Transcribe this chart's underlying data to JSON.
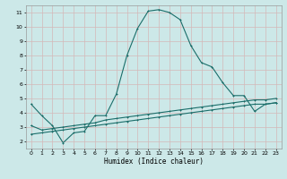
{
  "title": "",
  "xlabel": "Humidex (Indice chaleur)",
  "ylabel": "",
  "bg_color": "#cce8e8",
  "grid_color": "#b8d4d4",
  "line_color": "#1a6e6a",
  "xlim": [
    -0.5,
    23.5
  ],
  "ylim": [
    1.5,
    11.5
  ],
  "xticks": [
    0,
    1,
    2,
    3,
    4,
    5,
    6,
    7,
    8,
    9,
    10,
    11,
    12,
    13,
    14,
    15,
    16,
    17,
    18,
    19,
    20,
    21,
    22,
    23
  ],
  "yticks": [
    2,
    3,
    4,
    5,
    6,
    7,
    8,
    9,
    10,
    11
  ],
  "curve1_x": [
    0,
    1,
    2,
    3,
    4,
    5,
    6,
    7,
    8,
    9,
    10,
    11,
    12,
    13,
    14,
    15,
    16,
    17,
    18,
    19,
    20,
    21,
    22,
    23
  ],
  "curve1_y": [
    4.6,
    3.8,
    3.1,
    1.9,
    2.6,
    2.7,
    3.8,
    3.8,
    5.3,
    8.0,
    9.9,
    11.1,
    11.2,
    11.0,
    10.5,
    8.7,
    7.5,
    7.2,
    6.1,
    5.2,
    5.2,
    4.1,
    4.6,
    4.7
  ],
  "curve2_x": [
    0,
    1,
    2,
    3,
    4,
    5,
    6,
    7,
    8,
    9,
    10,
    11,
    12,
    13,
    14,
    15,
    16,
    17,
    18,
    19,
    20,
    21,
    22,
    23
  ],
  "curve2_y": [
    3.1,
    2.8,
    2.9,
    3.0,
    3.1,
    3.2,
    3.3,
    3.5,
    3.6,
    3.7,
    3.8,
    3.9,
    4.0,
    4.1,
    4.2,
    4.3,
    4.4,
    4.5,
    4.6,
    4.7,
    4.8,
    4.9,
    4.9,
    5.0
  ],
  "curve3_x": [
    0,
    1,
    2,
    3,
    4,
    5,
    6,
    7,
    8,
    9,
    10,
    11,
    12,
    13,
    14,
    15,
    16,
    17,
    18,
    19,
    20,
    21,
    22,
    23
  ],
  "curve3_y": [
    2.5,
    2.6,
    2.7,
    2.8,
    2.9,
    3.0,
    3.1,
    3.2,
    3.3,
    3.4,
    3.5,
    3.6,
    3.7,
    3.8,
    3.9,
    4.0,
    4.1,
    4.2,
    4.3,
    4.4,
    4.5,
    4.6,
    4.6,
    4.7
  ]
}
